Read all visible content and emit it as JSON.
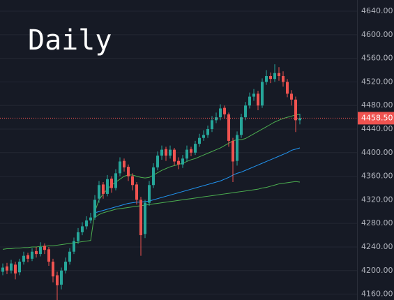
{
  "chart_data": {
    "type": "candlestick",
    "title": "Daily",
    "up_color": "#26a69a",
    "down_color": "#ef5350",
    "open": [
      4198,
      4207,
      4200,
      4210,
      4197,
      4215,
      4226,
      4220,
      4233,
      4228,
      4242,
      4236,
      4215,
      4192,
      4176,
      4200,
      4215,
      4232,
      4250,
      4265,
      4275,
      4285,
      4290,
      4322,
      4346,
      4330,
      4356,
      4340,
      4365,
      4386,
      4376,
      4360,
      4346,
      4320,
      4262,
      4315,
      4345,
      4375,
      4395,
      4406,
      4395,
      4405,
      4386,
      4380,
      4390,
      4406,
      4400,
      4415,
      4425,
      4430,
      4440,
      4455,
      4460,
      4476,
      4465,
      4420,
      4386,
      4430,
      4460,
      4480,
      4495,
      4500,
      4480,
      4520,
      4530,
      4525,
      4535,
      4530,
      4520,
      4500,
      4490,
      4455
    ],
    "high": [
      4212,
      4213,
      4218,
      4215,
      4220,
      4232,
      4230,
      4238,
      4240,
      4248,
      4246,
      4240,
      4220,
      4198,
      4205,
      4222,
      4238,
      4256,
      4272,
      4282,
      4292,
      4298,
      4328,
      4352,
      4350,
      4362,
      4360,
      4372,
      4392,
      4390,
      4380,
      4365,
      4350,
      4325,
      4320,
      4352,
      4382,
      4402,
      4412,
      4410,
      4412,
      4408,
      4392,
      4396,
      4412,
      4410,
      4420,
      4432,
      4438,
      4446,
      4462,
      4468,
      4482,
      4480,
      4468,
      4425,
      4436,
      4466,
      4486,
      4502,
      4508,
      4505,
      4526,
      4540,
      4536,
      4550,
      4545,
      4538,
      4525,
      4506,
      4495,
      4466
    ],
    "low": [
      4192,
      4194,
      4195,
      4185,
      4192,
      4210,
      4214,
      4216,
      4222,
      4224,
      4228,
      4208,
      4180,
      4150,
      4168,
      4195,
      4210,
      4228,
      4245,
      4260,
      4270,
      4280,
      4286,
      4315,
      4322,
      4326,
      4332,
      4336,
      4360,
      4368,
      4352,
      4336,
      4312,
      4225,
      4255,
      4310,
      4340,
      4370,
      4388,
      4386,
      4390,
      4378,
      4372,
      4374,
      4385,
      4394,
      4396,
      4410,
      4420,
      4425,
      4435,
      4450,
      4455,
      4458,
      4410,
      4350,
      4378,
      4425,
      4455,
      4475,
      4488,
      4472,
      4476,
      4515,
      4518,
      4520,
      4522,
      4512,
      4494,
      4480,
      4435,
      4448
    ],
    "close": [
      4205,
      4200,
      4212,
      4195,
      4215,
      4225,
      4220,
      4232,
      4228,
      4240,
      4235,
      4215,
      4190,
      4175,
      4200,
      4215,
      4232,
      4250,
      4265,
      4275,
      4285,
      4290,
      4320,
      4345,
      4330,
      4355,
      4340,
      4365,
      4385,
      4375,
      4360,
      4345,
      4320,
      4260,
      4315,
      4345,
      4375,
      4395,
      4405,
      4395,
      4405,
      4385,
      4380,
      4390,
      4405,
      4400,
      4415,
      4425,
      4430,
      4440,
      4455,
      4460,
      4475,
      4465,
      4420,
      4385,
      4430,
      4460,
      4480,
      4495,
      4500,
      4480,
      4520,
      4530,
      4525,
      4535,
      4530,
      4520,
      4500,
      4490,
      4455,
      4458.5
    ],
    "series": [
      {
        "color": "#4caf50",
        "values": [
          4236,
          4237,
          4237,
          4238,
          4238,
          4239,
          4239,
          4240,
          4240,
          4241,
          4241,
          4242,
          4242,
          4243,
          4244,
          4245,
          4246,
          4247,
          4248,
          4249,
          4250,
          4251,
          4300,
          4320,
          4330,
          4338,
          4345,
          4350,
          4355,
          4360,
          4362,
          4362,
          4360,
          4358,
          4357,
          4358,
          4362,
          4366,
          4370,
          4373,
          4376,
          4378,
          4380,
          4382,
          4385,
          4388,
          4390,
          4393,
          4396,
          4399,
          4402,
          4405,
          4408,
          4412,
          4416,
          4420,
          4422,
          4422,
          4424,
          4428,
          4432,
          4436,
          4440,
          4444,
          4448,
          4452,
          4455,
          4458,
          4460,
          4462,
          4464,
          4465
        ]
      },
      {
        "color": "#2196f3",
        "values": [
          null,
          null,
          null,
          null,
          null,
          null,
          null,
          null,
          null,
          null,
          null,
          null,
          null,
          null,
          null,
          null,
          null,
          null,
          null,
          null,
          null,
          null,
          4298,
          4300,
          4302,
          4304,
          4306,
          4308,
          4310,
          4312,
          4314,
          4315,
          4316,
          4316,
          4317,
          4318,
          4320,
          4322,
          4324,
          4326,
          4328,
          4330,
          4332,
          4334,
          4336,
          4338,
          4340,
          4342,
          4344,
          4346,
          4348,
          4350,
          4352,
          4355,
          4358,
          4362,
          4365,
          4367,
          4370,
          4373,
          4376,
          4379,
          4382,
          4385,
          4388,
          4391,
          4394,
          4397,
          4400,
          4404,
          4406,
          4408
        ]
      },
      {
        "color": "#4caf50",
        "values": [
          null,
          null,
          null,
          null,
          null,
          null,
          null,
          null,
          null,
          null,
          null,
          null,
          null,
          null,
          null,
          null,
          null,
          null,
          null,
          null,
          null,
          null,
          4290,
          4295,
          4298,
          4300,
          4302,
          4304,
          4305,
          4306,
          4307,
          4308,
          4309,
          4310,
          4311,
          4312,
          4313,
          4314,
          4315,
          4316,
          4317,
          4318,
          4319,
          4320,
          4321,
          4322,
          4323,
          4324,
          4325,
          4326,
          4327,
          4328,
          4329,
          4330,
          4331,
          4332,
          4333,
          4334,
          4335,
          4336,
          4337,
          4338,
          4340,
          4341,
          4343,
          4345,
          4347,
          4348,
          4349,
          4350,
          4351,
          4350
        ]
      }
    ],
    "price_line": {
      "value": 4458.5,
      "label": "4458.50"
    },
    "ylim": [
      4150,
      4659
    ],
    "yticks": [
      {
        "value": 4160,
        "label": "4160.00"
      },
      {
        "value": 4200,
        "label": "4200.00"
      },
      {
        "value": 4240,
        "label": "4240.00"
      },
      {
        "value": 4280,
        "label": "4280.00"
      },
      {
        "value": 4320,
        "label": "4320.00"
      },
      {
        "value": 4360,
        "label": "4360.00"
      },
      {
        "value": 4400,
        "label": "4400.00"
      },
      {
        "value": 4440,
        "label": "4440.00"
      },
      {
        "value": 4480,
        "label": "4480.00"
      },
      {
        "value": 4520,
        "label": "4520.00"
      },
      {
        "value": 4560,
        "label": "4560.00"
      },
      {
        "value": 4600,
        "label": "4600.00"
      },
      {
        "value": 4640,
        "label": "4640.00"
      }
    ],
    "grid": true
  }
}
